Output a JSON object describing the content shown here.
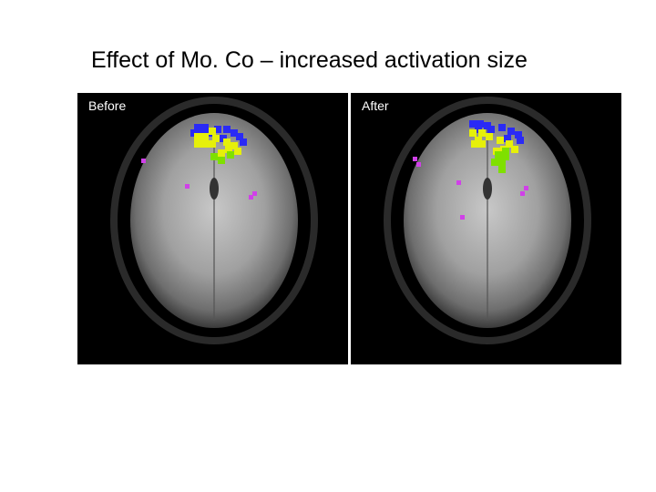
{
  "title": "Effect of Mo. Co – increased activation size",
  "panels": [
    {
      "label": "Before",
      "blue": [
        [
          128,
          34
        ],
        [
          136,
          34
        ],
        [
          124,
          40
        ],
        [
          132,
          40
        ],
        [
          140,
          40
        ],
        [
          150,
          36
        ],
        [
          160,
          36
        ],
        [
          168,
          40
        ],
        [
          174,
          44
        ],
        [
          156,
          46
        ],
        [
          178,
          50
        ]
      ],
      "yellow": [
        [
          128,
          44
        ],
        [
          136,
          44
        ],
        [
          144,
          38
        ],
        [
          148,
          46
        ],
        [
          128,
          52
        ],
        [
          136,
          52
        ],
        [
          144,
          52
        ],
        [
          160,
          50
        ],
        [
          168,
          54
        ],
        [
          172,
          60
        ],
        [
          162,
          58
        ],
        [
          154,
          62
        ]
      ],
      "green": [
        [
          154,
          70
        ],
        [
          164,
          64
        ],
        [
          146,
          66
        ]
      ],
      "magenta": [
        [
          70,
          72
        ],
        [
          118,
          100
        ],
        [
          192,
          108
        ],
        [
          188,
          112
        ]
      ]
    },
    {
      "label": "After",
      "blue": [
        [
          130,
          30
        ],
        [
          138,
          30
        ],
        [
          146,
          32
        ],
        [
          136,
          36
        ],
        [
          150,
          36
        ],
        [
          162,
          34
        ],
        [
          172,
          38
        ],
        [
          180,
          42
        ],
        [
          168,
          46
        ],
        [
          182,
          48
        ]
      ],
      "yellow": [
        [
          130,
          40
        ],
        [
          140,
          40
        ],
        [
          148,
          44
        ],
        [
          136,
          48
        ],
        [
          132,
          52
        ],
        [
          140,
          52
        ],
        [
          160,
          48
        ],
        [
          170,
          52
        ],
        [
          176,
          58
        ],
        [
          164,
          58
        ],
        [
          156,
          60
        ]
      ],
      "green": [
        [
          166,
          60
        ],
        [
          158,
          64
        ],
        [
          166,
          66
        ],
        [
          154,
          72
        ],
        [
          162,
          72
        ],
        [
          162,
          80
        ]
      ],
      "magenta": [
        [
          68,
          70
        ],
        [
          72,
          76
        ],
        [
          116,
          96
        ],
        [
          190,
          102
        ],
        [
          186,
          108
        ],
        [
          120,
          134
        ]
      ]
    }
  ]
}
